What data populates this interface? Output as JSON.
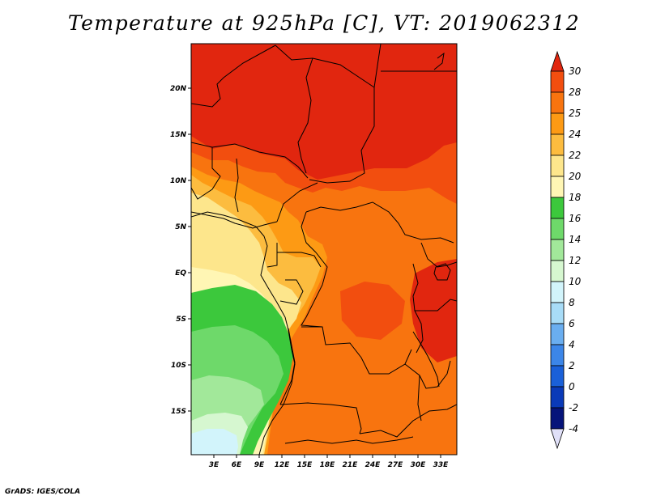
{
  "title": "Temperature at 925hPa [C], VT: 2019062312",
  "credit": "GrADS: IGES/COLA",
  "map": {
    "region": "Central Africa",
    "lat_labels": [
      "20N",
      "15N",
      "10N",
      "5N",
      "EQ",
      "5S",
      "10S",
      "15S"
    ],
    "lon_labels": [
      "3E",
      "6E",
      "9E",
      "12E",
      "15E",
      "18E",
      "21E",
      "24E",
      "27E",
      "30E",
      "33E"
    ]
  },
  "colorbar": {
    "labels": [
      "30",
      "28",
      "25",
      "24",
      "22",
      "20",
      "18",
      "16",
      "14",
      "12",
      "10",
      "8",
      "6",
      "4",
      "2",
      "0",
      "-2",
      "-4"
    ],
    "colors": [
      "#e1260f",
      "#f24e0f",
      "#f8740f",
      "#fd9a14",
      "#fcbc3f",
      "#fde68c",
      "#fff6b4",
      "#3cc83c",
      "#6ed96a",
      "#a2e89a",
      "#d6f7d0",
      "#d2f4fb",
      "#a8dcf7",
      "#6aaef0",
      "#3c86e8",
      "#1a60d8",
      "#0a3ab8",
      "#06147a",
      "#e0e0f8"
    ]
  }
}
